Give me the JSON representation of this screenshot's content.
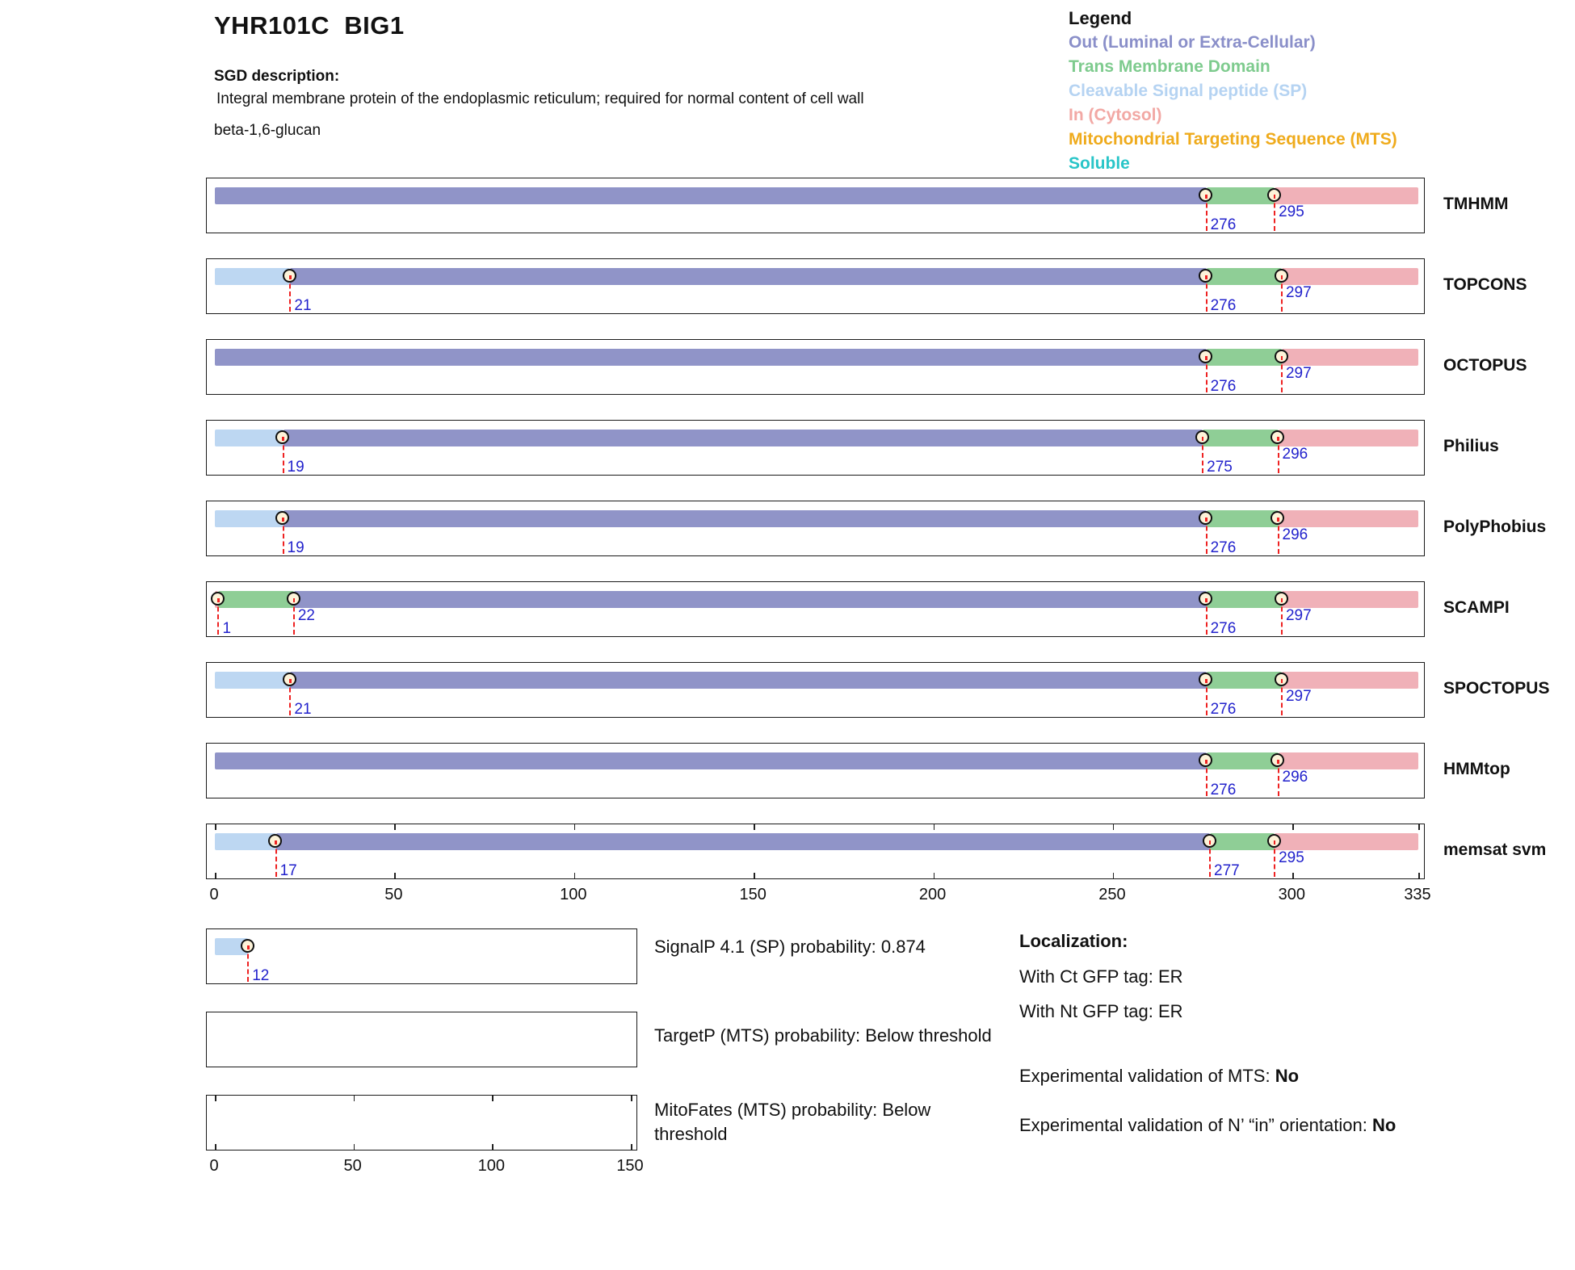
{
  "header": {
    "title": "YHR101C  BIG1",
    "sgd_label": "SGD description:",
    "sgd_description_line1": "Integral membrane protein of the endoplasmic reticulum; required for normal content of cell wall",
    "sgd_description_line2": "beta-1,6-glucan"
  },
  "legend": {
    "title": "Legend",
    "items": [
      {
        "label": "Out (Luminal or Extra-Cellular)",
        "color": "#8a8fc9"
      },
      {
        "label": "Trans Membrane Domain",
        "color": "#7ecb8e"
      },
      {
        "label": "Cleavable Signal peptide (SP)",
        "color": "#b5d3f2"
      },
      {
        "label": "In (Cytosol)",
        "color": "#f2a8a4"
      },
      {
        "label": "Mitochondrial Targeting Sequence (MTS)",
        "color": "#efab1c"
      },
      {
        "label": "Soluble",
        "color": "#29c5c8"
      }
    ]
  },
  "colors": {
    "out": "#9094c8",
    "tm": "#8fce96",
    "in": "#f0b1b8",
    "sp": "#bdd7f2",
    "marker_fill": "#fdf3d9",
    "marker_stroke": "#111111",
    "dashed_red": "#ee2222",
    "number_blue": "#2222cc",
    "box_border": "#1a1a1a"
  },
  "chart_data": {
    "type": "bar",
    "orientation": "horizontal-topology-tracks",
    "x_axis": {
      "min": 0,
      "max": 335,
      "ticks": [
        0,
        50,
        100,
        150,
        200,
        250,
        300,
        335
      ]
    },
    "tracks": [
      {
        "name": "TMHMM",
        "segments": [
          {
            "type": "out",
            "start": 0,
            "end": 276
          },
          {
            "type": "tm",
            "start": 276,
            "end": 295
          },
          {
            "type": "in",
            "start": 295,
            "end": 335
          }
        ],
        "markers": [
          {
            "pos": 276,
            "label": "276",
            "placement": "low"
          },
          {
            "pos": 295,
            "label": "295",
            "placement": "high"
          }
        ]
      },
      {
        "name": "TOPCONS",
        "segments": [
          {
            "type": "sp",
            "start": 0,
            "end": 21
          },
          {
            "type": "out",
            "start": 21,
            "end": 276
          },
          {
            "type": "tm",
            "start": 276,
            "end": 297
          },
          {
            "type": "in",
            "start": 297,
            "end": 335
          }
        ],
        "markers": [
          {
            "pos": 21,
            "label": "21",
            "placement": "low"
          },
          {
            "pos": 276,
            "label": "276",
            "placement": "low"
          },
          {
            "pos": 297,
            "label": "297",
            "placement": "high"
          }
        ]
      },
      {
        "name": "OCTOPUS",
        "segments": [
          {
            "type": "out",
            "start": 0,
            "end": 276
          },
          {
            "type": "tm",
            "start": 276,
            "end": 297
          },
          {
            "type": "in",
            "start": 297,
            "end": 335
          }
        ],
        "markers": [
          {
            "pos": 276,
            "label": "276",
            "placement": "low"
          },
          {
            "pos": 297,
            "label": "297",
            "placement": "high"
          }
        ]
      },
      {
        "name": "Philius",
        "segments": [
          {
            "type": "sp",
            "start": 0,
            "end": 19
          },
          {
            "type": "out",
            "start": 19,
            "end": 275
          },
          {
            "type": "tm",
            "start": 275,
            "end": 296
          },
          {
            "type": "in",
            "start": 296,
            "end": 335
          }
        ],
        "markers": [
          {
            "pos": 19,
            "label": "19",
            "placement": "low"
          },
          {
            "pos": 275,
            "label": "275",
            "placement": "low"
          },
          {
            "pos": 296,
            "label": "296",
            "placement": "high"
          }
        ]
      },
      {
        "name": "PolyPhobius",
        "segments": [
          {
            "type": "sp",
            "start": 0,
            "end": 19
          },
          {
            "type": "out",
            "start": 19,
            "end": 276
          },
          {
            "type": "tm",
            "start": 276,
            "end": 296
          },
          {
            "type": "in",
            "start": 296,
            "end": 335
          }
        ],
        "markers": [
          {
            "pos": 19,
            "label": "19",
            "placement": "low"
          },
          {
            "pos": 276,
            "label": "276",
            "placement": "low"
          },
          {
            "pos": 296,
            "label": "296",
            "placement": "high"
          }
        ]
      },
      {
        "name": "SCAMPI",
        "segments": [
          {
            "type": "in",
            "start": 0,
            "end": 1
          },
          {
            "type": "tm",
            "start": 1,
            "end": 22
          },
          {
            "type": "out",
            "start": 22,
            "end": 276
          },
          {
            "type": "tm",
            "start": 276,
            "end": 297
          },
          {
            "type": "in",
            "start": 297,
            "end": 335
          }
        ],
        "markers": [
          {
            "pos": 1,
            "label": "1",
            "placement": "low"
          },
          {
            "pos": 22,
            "label": "22",
            "placement": "high"
          },
          {
            "pos": 276,
            "label": "276",
            "placement": "low"
          },
          {
            "pos": 297,
            "label": "297",
            "placement": "high"
          }
        ]
      },
      {
        "name": "SPOCTOPUS",
        "segments": [
          {
            "type": "sp",
            "start": 0,
            "end": 21
          },
          {
            "type": "out",
            "start": 21,
            "end": 276
          },
          {
            "type": "tm",
            "start": 276,
            "end": 297
          },
          {
            "type": "in",
            "start": 297,
            "end": 335
          }
        ],
        "markers": [
          {
            "pos": 21,
            "label": "21",
            "placement": "low"
          },
          {
            "pos": 276,
            "label": "276",
            "placement": "low"
          },
          {
            "pos": 297,
            "label": "297",
            "placement": "high"
          }
        ]
      },
      {
        "name": "HMMtop",
        "segments": [
          {
            "type": "out",
            "start": 0,
            "end": 276
          },
          {
            "type": "tm",
            "start": 276,
            "end": 296
          },
          {
            "type": "in",
            "start": 296,
            "end": 335
          }
        ],
        "markers": [
          {
            "pos": 276,
            "label": "276",
            "placement": "low"
          },
          {
            "pos": 296,
            "label": "296",
            "placement": "high"
          }
        ]
      },
      {
        "name": "memsat svm",
        "has_axis_ticks": true,
        "segments": [
          {
            "type": "sp",
            "start": 0,
            "end": 17
          },
          {
            "type": "out",
            "start": 17,
            "end": 277
          },
          {
            "type": "tm",
            "start": 277,
            "end": 295
          },
          {
            "type": "in",
            "start": 295,
            "end": 335
          }
        ],
        "markers": [
          {
            "pos": 17,
            "label": "17",
            "placement": "low"
          },
          {
            "pos": 277,
            "label": "277",
            "placement": "low"
          },
          {
            "pos": 295,
            "label": "295",
            "placement": "high"
          }
        ]
      }
    ],
    "sub_plots": [
      {
        "name": "SignalP",
        "label": "SignalP 4.1 (SP) probability: 0.874",
        "segments": [
          {
            "type": "sp",
            "start": 0,
            "end": 12
          }
        ],
        "markers": [
          {
            "pos": 12,
            "label": "12",
            "placement": "low"
          }
        ],
        "ticks": null,
        "axis_labels": null
      },
      {
        "name": "TargetP",
        "label": "TargetP (MTS) probability: Below threshold",
        "segments": [],
        "markers": [],
        "ticks": null,
        "axis_labels": null
      },
      {
        "name": "MitoFates",
        "label": "MitoFates (MTS) probability: Below\nthreshold",
        "segments": [],
        "markers": [],
        "ticks": [
          0,
          50,
          100,
          150
        ],
        "axis_labels": [
          0,
          50,
          100,
          150
        ]
      }
    ]
  },
  "info": {
    "localization_title": "Localization:",
    "ct_line": "With Ct GFP tag: ER",
    "nt_line": "With Nt GFP tag: ER",
    "mts_prefix": "Experimental validation of MTS: ",
    "mts_value": "No",
    "orientation_prefix": "Experimental validation of N’ “in” orientation: ",
    "orientation_value": "No"
  }
}
